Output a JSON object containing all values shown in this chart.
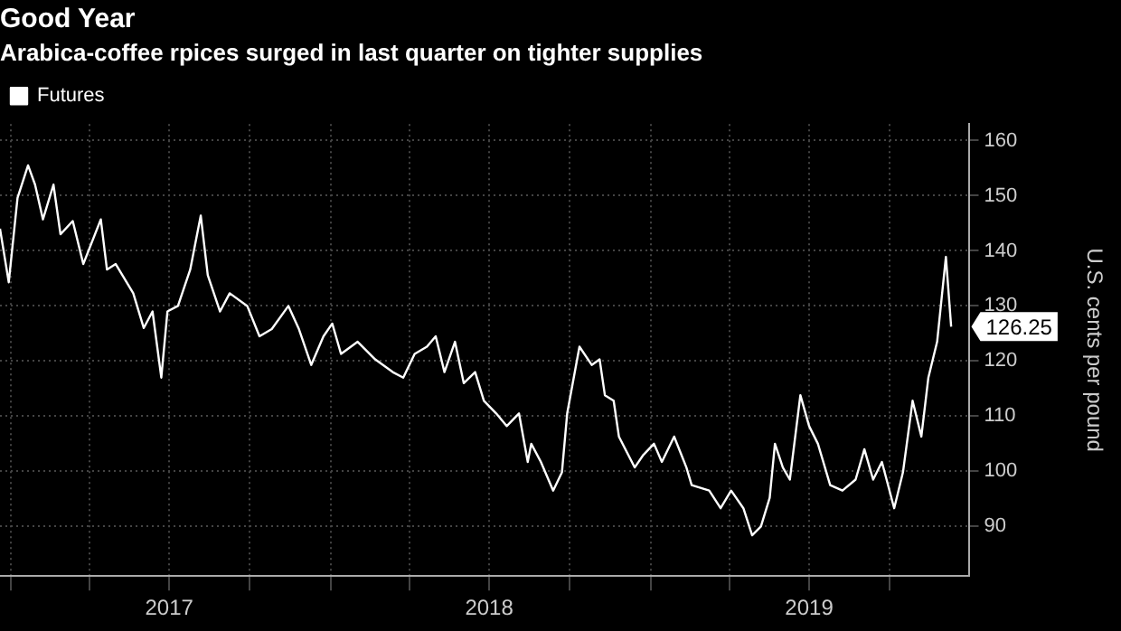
{
  "chart_data": {
    "type": "line",
    "title": "Good Year",
    "subtitle": "Arabica-coffee rpices surged in last quarter on tighter supplies",
    "ylabel": "U.S. cents per pound",
    "x": [
      "2016-12-20",
      "2016-12-30",
      "2017-01-09",
      "2017-01-21",
      "2017-01-29",
      "2017-02-07",
      "2017-02-19",
      "2017-02-27",
      "2017-03-13",
      "2017-03-25",
      "2017-04-14",
      "2017-04-21",
      "2017-05-01",
      "2017-05-21",
      "2017-06-02",
      "2017-06-12",
      "2017-06-22",
      "2017-06-29",
      "2017-07-11",
      "2017-07-25",
      "2017-08-06",
      "2017-08-14",
      "2017-08-28",
      "2017-09-08",
      "2017-09-28",
      "2017-10-12",
      "2017-10-26",
      "2017-11-14",
      "2017-11-26",
      "2017-12-10",
      "2017-12-24",
      "2018-01-03",
      "2018-01-13",
      "2018-02-01",
      "2018-02-21",
      "2018-03-13",
      "2018-03-25",
      "2018-04-07",
      "2018-04-21",
      "2018-05-01",
      "2018-05-11",
      "2018-05-23",
      "2018-06-02",
      "2018-06-15",
      "2018-06-25",
      "2018-07-09",
      "2018-07-21",
      "2018-08-04",
      "2018-08-14",
      "2018-08-18",
      "2018-08-29",
      "2018-09-12",
      "2018-09-22",
      "2018-09-28",
      "2018-10-12",
      "2018-10-26",
      "2018-11-04",
      "2018-11-10",
      "2018-11-20",
      "2018-11-26",
      "2018-12-14",
      "2018-12-24",
      "2019-01-05",
      "2019-01-14",
      "2019-01-28",
      "2019-02-11",
      "2019-02-17",
      "2019-03-09",
      "2019-03-22",
      "2019-04-03",
      "2019-04-17",
      "2019-04-27",
      "2019-05-07",
      "2019-05-17",
      "2019-05-23",
      "2019-06-01",
      "2019-06-09",
      "2019-06-21",
      "2019-07-01",
      "2019-07-11",
      "2019-07-25",
      "2019-08-08",
      "2019-08-23",
      "2019-09-02",
      "2019-09-12",
      "2019-09-22",
      "2019-10-06",
      "2019-10-16",
      "2019-10-27",
      "2019-11-06",
      "2019-11-14",
      "2019-11-24",
      "2019-12-04",
      "2019-12-10"
    ],
    "series": [
      {
        "name": "Futures",
        "color": "#ffffff",
        "values": [
          144,
          134.3,
          149.6,
          155.5,
          152,
          145.7,
          152,
          143,
          145.4,
          137.6,
          145.7,
          136.6,
          137.6,
          132.3,
          126,
          129,
          117,
          129,
          130,
          136.6,
          146.4,
          135.6,
          129,
          132.3,
          130,
          124.5,
          125.8,
          130,
          125.8,
          119.3,
          124.5,
          126.8,
          121.3,
          123.5,
          120.3,
          118,
          117,
          121.3,
          122.6,
          124.5,
          118,
          123.5,
          116,
          118,
          112.8,
          110.5,
          108.2,
          110.5,
          101.7,
          105,
          101.7,
          96.5,
          99.8,
          110.5,
          122.6,
          119.3,
          120.3,
          113.8,
          112.8,
          106.3,
          100.7,
          103,
          105,
          101.7,
          106.3,
          100.7,
          97.5,
          96.5,
          93.3,
          96.5,
          93.3,
          88.4,
          90,
          95.2,
          105,
          100.7,
          98.5,
          113.8,
          108.2,
          105,
          97.5,
          96.5,
          98.5,
          104,
          98.5,
          101.7,
          93.3,
          99.8,
          112.8,
          106.3,
          117,
          123.5,
          138.9,
          126.25
        ]
      }
    ],
    "xlim": [
      "2016-12-20",
      "2019-12-31"
    ],
    "xticks": [
      {
        "value": "2017-01-01",
        "label": null
      },
      {
        "value": "2017-04-01",
        "label": null
      },
      {
        "value": "2017-07-01",
        "label": "2017"
      },
      {
        "value": "2017-10-01",
        "label": null
      },
      {
        "value": "2018-01-01",
        "label": null
      },
      {
        "value": "2018-04-01",
        "label": null
      },
      {
        "value": "2018-07-01",
        "label": "2018"
      },
      {
        "value": "2018-10-01",
        "label": null
      },
      {
        "value": "2019-01-01",
        "label": null
      },
      {
        "value": "2019-04-01",
        "label": null
      },
      {
        "value": "2019-07-01",
        "label": "2019"
      },
      {
        "value": "2019-10-01",
        "label": null
      }
    ],
    "ylim": [
      81,
      163
    ],
    "yticks": [
      90,
      100,
      110,
      120,
      130,
      140,
      150,
      160
    ],
    "annotations": [
      {
        "text": "126.25",
        "x": "2019-12-10",
        "y": 126.25
      }
    ],
    "grid": true,
    "legend": "top left",
    "line_style": "solid",
    "marker": "none"
  }
}
